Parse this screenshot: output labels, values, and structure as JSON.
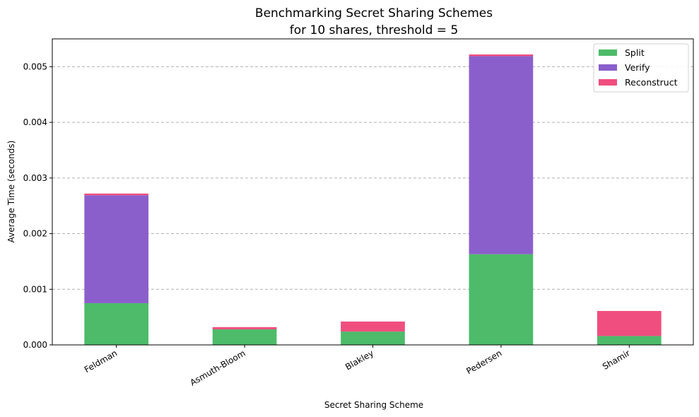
{
  "chart_data": {
    "type": "bar",
    "stacked": true,
    "title": "Benchmarking Secret Sharing Schemes",
    "subtitle": "for 10 shares, threshold = 5",
    "xlabel": "Secret Sharing Scheme",
    "ylabel": "Average Time (seconds)",
    "categories": [
      "Feldman",
      "Asmuth-Bloom",
      "Blakley",
      "Pedersen",
      "Shamir"
    ],
    "series": [
      {
        "name": "Split",
        "color": "#4dbb6a",
        "values": [
          0.00075,
          0.00028,
          0.00024,
          0.00163,
          0.00016
        ]
      },
      {
        "name": "Verify",
        "color": "#8b5fcb",
        "values": [
          0.00194,
          0.0,
          0.0,
          0.00356,
          0.0
        ]
      },
      {
        "name": "Reconstruct",
        "color": "#f04e7f",
        "values": [
          3e-05,
          4e-05,
          0.00018,
          3e-05,
          0.00045
        ]
      }
    ],
    "ylim": [
      0,
      0.0055
    ],
    "yticks": [
      "0.000",
      "0.001",
      "0.002",
      "0.003",
      "0.004",
      "0.005"
    ],
    "ytick_values": [
      0,
      0.001,
      0.002,
      0.003,
      0.004,
      0.005
    ],
    "grid": "y-dashed",
    "legend_position": "top-right"
  }
}
